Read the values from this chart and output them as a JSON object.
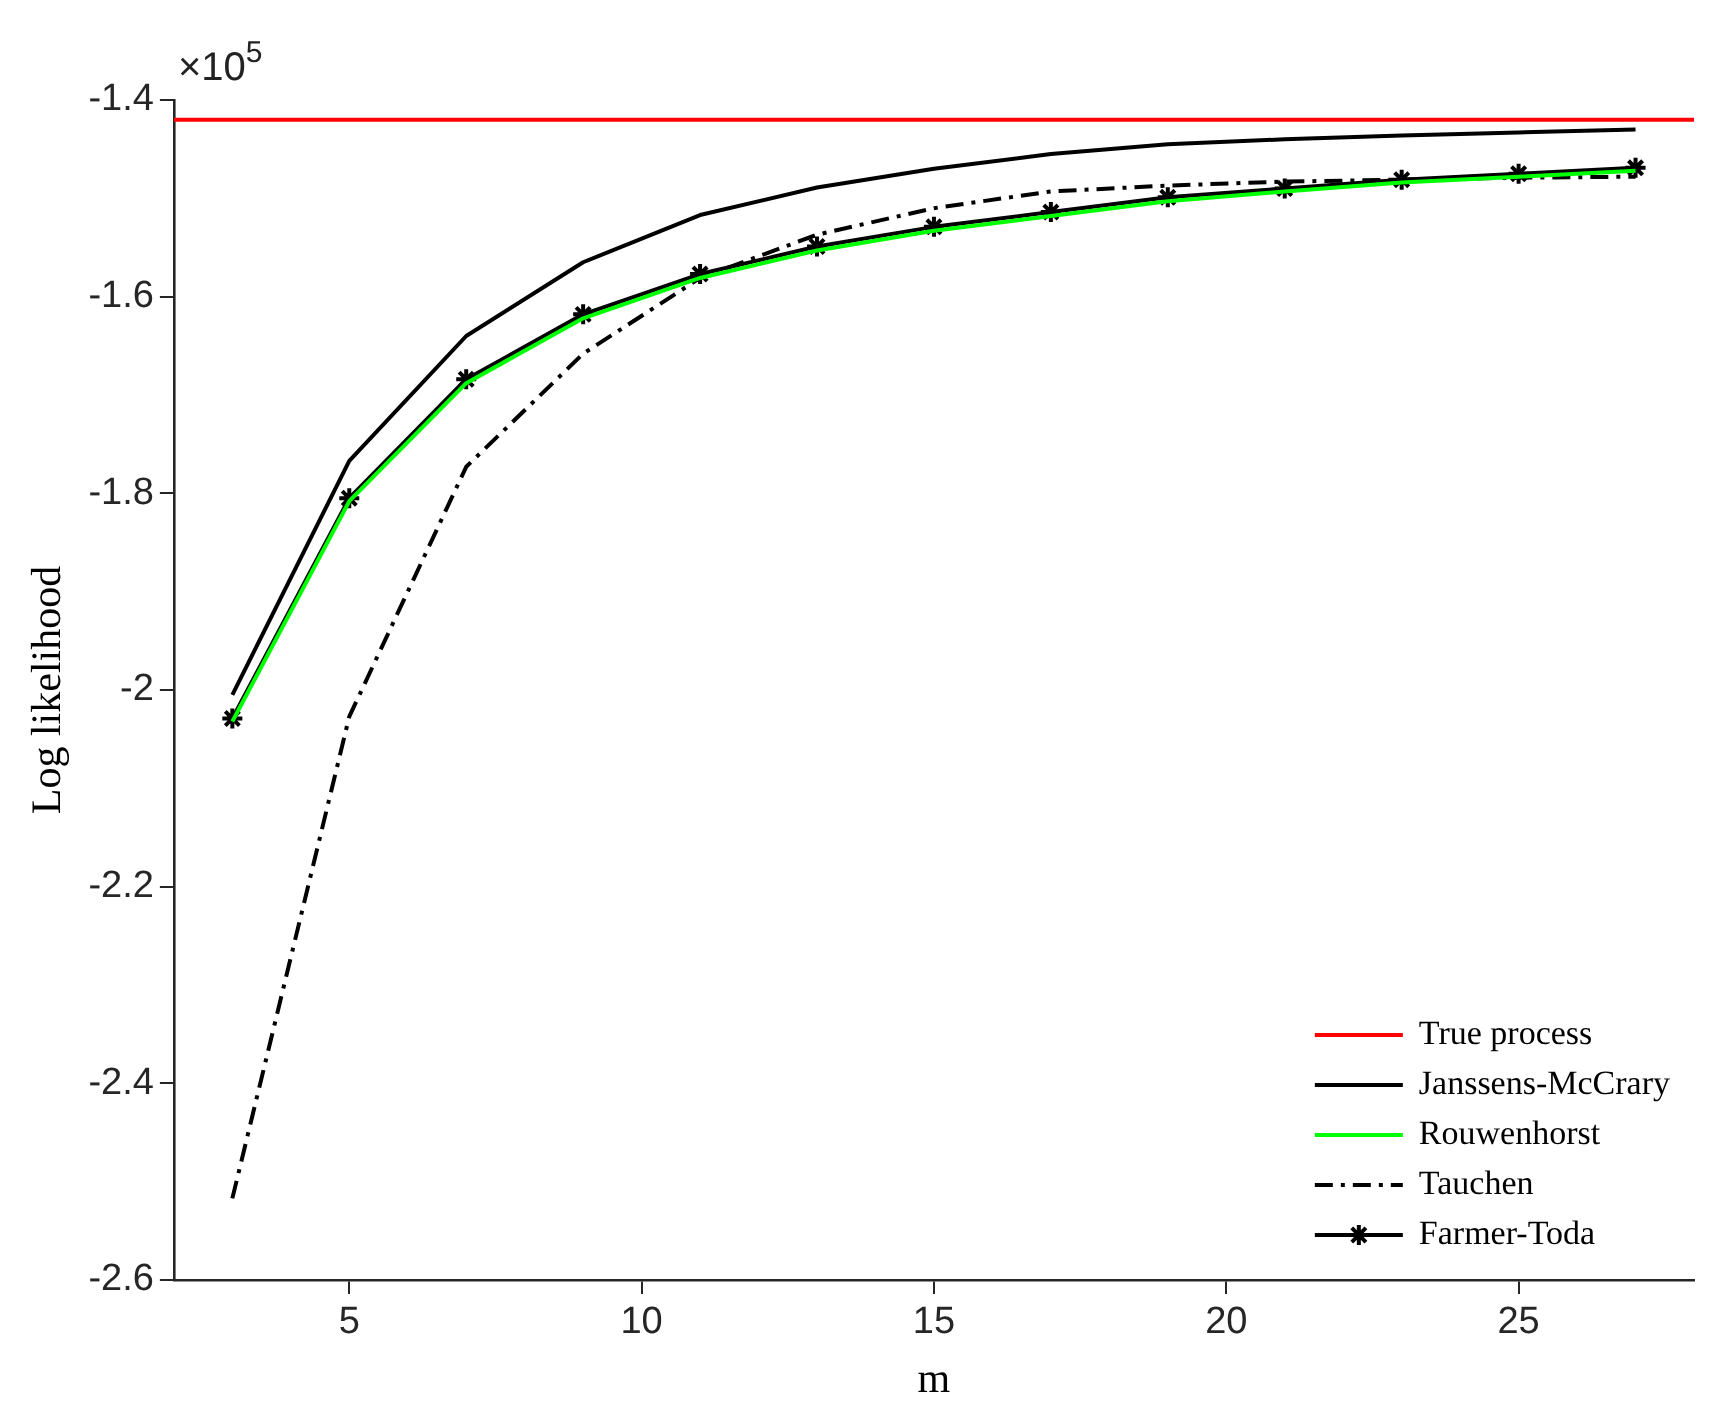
{
  "chart_data": {
    "type": "line",
    "xlabel": "m",
    "ylabel": "Log likelihood",
    "annotations": [
      "×10$^{5}$"
    ],
    "xlim": [
      2,
      28
    ],
    "xticks": [
      5,
      10,
      15,
      20,
      25
    ],
    "ylim": [
      -2.6,
      -1.4
    ],
    "yticks": [
      -2.6,
      -2.4,
      -2.2,
      -2,
      -1.8,
      -1.6,
      -1.4
    ],
    "grid": false,
    "legend": "bottom right",
    "marker": "none",
    "line_style": "solid",
    "series": [
      {
        "name": "True process",
        "color": "#ff0000",
        "x": [
          2,
          28
        ],
        "values": [
          -1.42,
          -1.42
        ]
      },
      {
        "name": "Janssens-McCrary",
        "color": "#000000",
        "x": [
          3,
          5,
          7,
          9,
          11,
          13,
          15,
          17,
          19,
          21,
          23,
          25,
          27
        ],
        "values": [
          -2.005,
          -1.767,
          -1.64,
          -1.565,
          -1.517,
          -1.489,
          -1.47,
          -1.455,
          -1.445,
          -1.44,
          -1.436,
          -1.433,
          -1.43
        ]
      },
      {
        "name": "Rouwenhorst",
        "color": "#00ff00",
        "x": [
          3,
          5,
          7,
          9,
          11,
          13,
          15,
          17,
          19,
          21,
          23,
          25,
          27
        ],
        "values": [
          -2.032,
          -1.808,
          -1.688,
          -1.622,
          -1.581,
          -1.553,
          -1.533,
          -1.518,
          -1.503,
          -1.493,
          -1.484,
          -1.478,
          -1.472
        ]
      },
      {
        "name": "Tauchen",
        "color": "#000000",
        "line_style": "dashdot",
        "x": [
          3,
          5,
          7,
          9,
          11,
          13,
          15,
          17,
          19,
          21,
          23,
          25,
          27
        ],
        "values": [
          -2.517,
          -2.027,
          -1.773,
          -1.658,
          -1.581,
          -1.537,
          -1.51,
          -1.493,
          -1.487,
          -1.483,
          -1.481,
          -1.479,
          -1.478
        ]
      },
      {
        "name": "Farmer-Toda",
        "color": "#000000",
        "marker": "cross",
        "x": [
          3,
          5,
          7,
          9,
          11,
          13,
          15,
          17,
          19,
          21,
          23,
          25,
          27
        ],
        "values": [
          -2.029,
          -1.805,
          -1.684,
          -1.618,
          -1.577,
          -1.549,
          -1.529,
          -1.514,
          -1.499,
          -1.49,
          -1.481,
          -1.475,
          -1.469
        ]
      }
    ]
  }
}
